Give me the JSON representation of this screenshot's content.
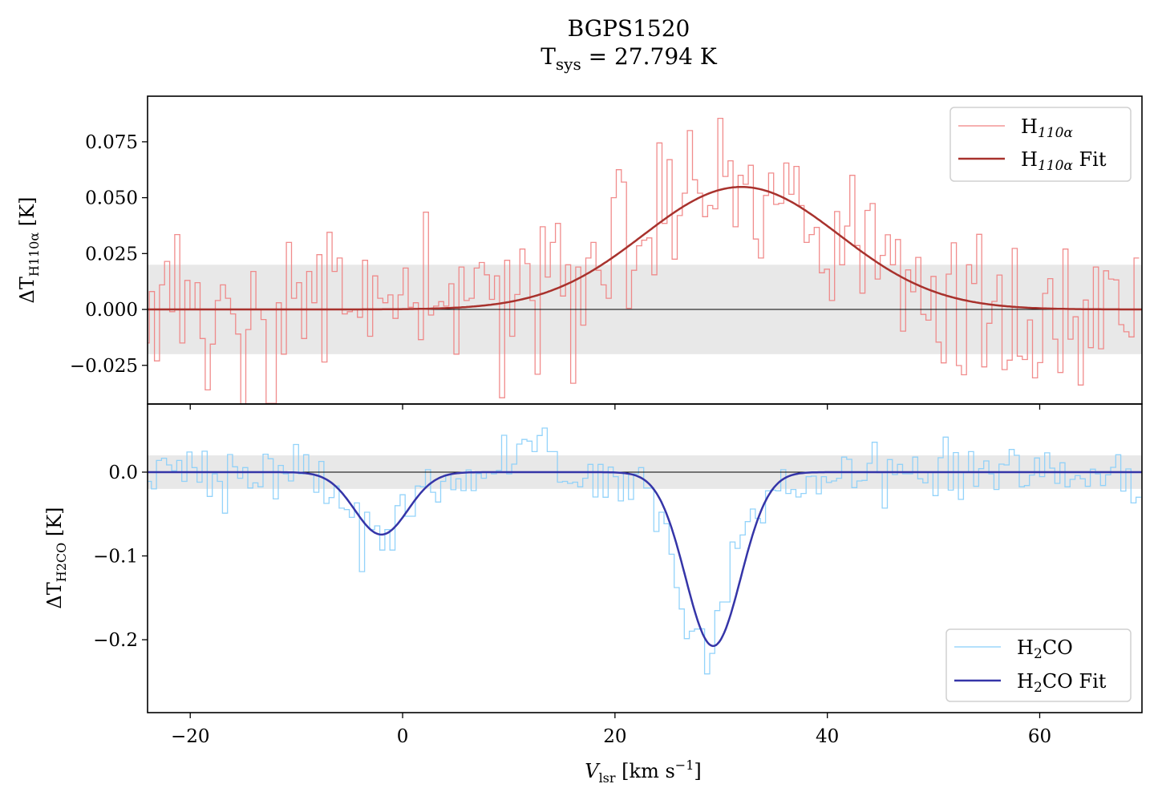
{
  "chart_data": [
    {
      "type": "line",
      "panel": "top",
      "title": "BGPS1520",
      "subtitle": {
        "main": "T",
        "sub": "sys",
        "rest": " = 27.794 K"
      },
      "ylabel": {
        "main": "ΔT",
        "sub": "H110α",
        "rest": " [K]"
      },
      "xlim": [
        -24.02,
        69.63
      ],
      "ylim": [
        -0.0423,
        0.0954
      ],
      "yticks": [
        0.075,
        0.05,
        0.025,
        0.0,
        -0.025
      ],
      "ytick_labels": [
        "0.075",
        "0.050",
        "0.025",
        "0.000",
        "−0.025"
      ],
      "noise_band": [
        -0.02,
        0.02
      ],
      "zero_line": 0,
      "legend_placement": "top-right",
      "x_start": -24.09,
      "channel_width": 0.478,
      "series": [
        {
          "name": "H110α",
          "label": {
            "main": "H",
            "sub": "110α",
            "rest": ""
          },
          "color": "#f08080",
          "style": "steps",
          "values": [
            -0.015,
            0.008,
            -0.023,
            0.011,
            0.0215,
            -0.001,
            0.0335,
            -0.015,
            0.013,
            0,
            0.012,
            -0.013,
            -0.036,
            -0.0155,
            0.004,
            0.011,
            0.005,
            -0.002,
            -0.011,
            -0.043,
            -0.009,
            0.017,
            0,
            -0.0045,
            -0.042,
            -0.042,
            0.003,
            -0.02,
            0.03,
            0.005,
            0.012,
            -0.013,
            0.017,
            0.003,
            0.0245,
            -0.0235,
            0.0345,
            0.017,
            0.023,
            -0.002,
            -0.001,
            0,
            -0.0035,
            0.022,
            -0.012,
            0.015,
            0.005,
            0.003,
            0.0065,
            -0.004,
            0.0065,
            0.0185,
            0.001,
            0.003,
            -0.0135,
            0.0435,
            -0.0025,
            0.0015,
            0.0035,
            0.0015,
            0.0115,
            -0.02,
            0.019,
            0.004,
            0.005,
            0.0185,
            0.021,
            0.0155,
            0.0045,
            0.015,
            -0.0395,
            0.022,
            -0.012,
            0.0067,
            0.027,
            0.0205,
            0.004,
            -0.029,
            0.037,
            0.0145,
            0.03,
            0.0385,
            0.006,
            0.02,
            -0.033,
            0.019,
            -0.007,
            0.023,
            0.03,
            0.0175,
            0.011,
            0.005,
            0.05,
            0.0625,
            0.057,
            0.0005,
            0.0175,
            0.0285,
            0.031,
            0.032,
            0.0155,
            0.0745,
            0.0385,
            0.067,
            0.0225,
            0.042,
            0.052,
            0.08,
            0.058,
            0.052,
            0.0415,
            0.0465,
            0.045,
            0.0855,
            0.0595,
            0.0665,
            0.037,
            0.06,
            0.056,
            0.0645,
            0.0315,
            0.023,
            0.051,
            0.061,
            0.047,
            0.0475,
            0.0655,
            0.0515,
            0.064,
            0.0465,
            0.03,
            0.0335,
            0.0367,
            0.0164,
            0.018,
            0.004,
            0.0438,
            0.02,
            0.0373,
            0.06,
            0.0286,
            0.0073,
            0.0443,
            0.0474,
            0.0136,
            0.0242,
            0.0334,
            0.02,
            0.0313,
            -0.0097,
            0.0177,
            0.0079,
            0.0233,
            -0.0022,
            -0.0048,
            0.0148,
            -0.0146,
            -0.0239,
            0.0158,
            0.0298,
            -0.0251,
            -0.0292,
            0.02,
            0.0116,
            0.0336,
            -0.0257,
            -0.0062,
            0.0036,
            0.0154,
            -0.0269,
            -0.0227,
            0.0273,
            -0.0209,
            -0.0224,
            -0.0047,
            -0.0306,
            -0.0238,
            0.0072,
            0.0138,
            -0.0133,
            -0.0282,
            0.027,
            -0.0133,
            -0.0033,
            -0.0338,
            0.0042,
            -0.0171,
            0.019,
            -0.0176,
            0.0173,
            0.0136,
            0.0132,
            -0.0068,
            -0.01,
            -0.0123,
            0.023
          ]
        },
        {
          "name": "H110α Fit",
          "label": {
            "main": "H",
            "sub": "110α",
            "rest": " Fit"
          },
          "color": "#a8322d",
          "style": "gaussian",
          "components": [
            {
              "amplitude": 0.0548,
              "center": 31.9,
              "sigma": 9.25
            }
          ]
        }
      ]
    },
    {
      "type": "line",
      "panel": "bottom",
      "xlabel": {
        "main": "V",
        "sub": "lsr",
        "rest": " [km s",
        "sup": "−1",
        "end": "]"
      },
      "ylabel": {
        "main": "ΔT",
        "sub": "H2CO",
        "rest": " [K]"
      },
      "xlim": [
        -24.02,
        69.63
      ],
      "ylim": [
        -0.287,
        0.0813
      ],
      "xticks": [
        -20,
        0,
        20,
        40,
        60
      ],
      "xtick_labels": [
        "−20",
        "0",
        "20",
        "40",
        "60"
      ],
      "yticks": [
        0.0,
        -0.1,
        -0.2
      ],
      "ytick_labels": [
        "0.0",
        "−0.1",
        "−0.2"
      ],
      "noise_band": [
        -0.02,
        0.02
      ],
      "zero_line": 0,
      "legend_placement": "bottom-right",
      "x_start": -23.9,
      "channel_width": 0.478,
      "series": [
        {
          "name": "H2CO",
          "label": {
            "main": "H",
            "sub": "2",
            "rest": "CO"
          },
          "color": "#87cefa",
          "style": "steps",
          "values": [
            -0.011,
            -0.02,
            0.014,
            0.0166,
            0.0086,
            0.0016,
            0.014,
            -0.011,
            0.024,
            0.0054,
            -0.012,
            0.025,
            -0.029,
            -0.002,
            -0.011,
            -0.049,
            0.021,
            0.0064,
            -0.0073,
            0.0054,
            -0.019,
            -0.0128,
            -0.0175,
            0.0214,
            0.016,
            -0.032,
            0.008,
            -0.002,
            -0.0105,
            0.033,
            -0.002,
            0.0207,
            -0.002,
            -0.024,
            0.0128,
            -0.0373,
            -0.0303,
            -0.0166,
            -0.043,
            -0.0447,
            -0.054,
            -0.0367,
            -0.1187,
            -0.0478,
            -0.0686,
            -0.0641,
            -0.093,
            -0.0686,
            -0.093,
            -0.04,
            -0.027,
            -0.0526,
            -0.0526,
            -0.0166,
            -0.0175,
            0.003,
            -0.024,
            -0.0357,
            -0.011,
            -0.003,
            -0.021,
            -0.008,
            -0.022,
            0.0026,
            -0.022,
            -0.0016,
            -0.0073,
            0,
            -0.002,
            0.002,
            0.044,
            -0.002,
            0.0096,
            0.0335,
            0.039,
            0.037,
            0.0245,
            0.0437,
            0.0526,
            0.0245,
            0.0245,
            -0.012,
            -0.011,
            -0.0134,
            -0.012,
            -0.0175,
            -0.0073,
            0.0093,
            -0.0297,
            0.0093,
            -0.03,
            0.006,
            -0.0054,
            -0.0344,
            -0.0016,
            -0.0325,
            -0.002,
            0.0054,
            -0.019,
            -0.019,
            -0.0708,
            -0.0478,
            -0.0616,
            -0.098,
            -0.1378,
            -0.1633,
            -0.1987,
            -0.1898,
            -0.1872,
            -0.187,
            -0.2408,
            -0.2163,
            -0.1652,
            -0.155,
            -0.155,
            -0.0833,
            -0.091,
            -0.075,
            -0.059,
            -0.044,
            -0.0552,
            -0.0606,
            -0.0223,
            -0.0214,
            -0.0223,
            0.003,
            -0.0255,
            -0.0207,
            -0.0297,
            -0.0255,
            -0.0054,
            -0.0048,
            -0.0258,
            -0.0054,
            -0.0124,
            -0.0105,
            -0.0073,
            0.018,
            0.0153,
            -0.0185,
            -0.0105,
            -0.0099,
            0.0105,
            0.0357,
            -0.0006,
            -0.043,
            0.015,
            -0.0029,
            0.0093,
            -0.0019,
            -0.0019,
            0.018,
            -0.008,
            -0.0128,
            0,
            -0.028,
            0.0172,
            0.0418,
            -0.0214,
            0.0233,
            -0.0325,
            0,
            0.0245,
            -0.0169,
            0.0041,
            0.0134,
            -0.002,
            -0.0207,
            0.0096,
            0.0086,
            0.0271,
            0.0201,
            -0.0175,
            -0.016,
            -0.0035,
            0.0169,
            -0.0054,
            0.023,
            0.0048,
            -0.0134,
            0.0112,
            -0.0175,
            -0.0086,
            -0.0041,
            -0.008,
            -0.0169,
            0.0035,
            -0.002,
            -0.016,
            -0.0032,
            0.0057,
            0.0207,
            -0.0226,
            0.0038,
            -0.0367,
            -0.03
          ]
        },
        {
          "name": "H2CO Fit",
          "label": {
            "main": "H",
            "sub": "2",
            "rest": "CO Fit"
          },
          "color": "#3535a8",
          "style": "gaussian",
          "components": [
            {
              "amplitude": -0.0745,
              "center": -2.0,
              "sigma": 2.5
            },
            {
              "amplitude": -0.2075,
              "center": 29.25,
              "sigma": 2.6
            }
          ]
        }
      ]
    }
  ]
}
